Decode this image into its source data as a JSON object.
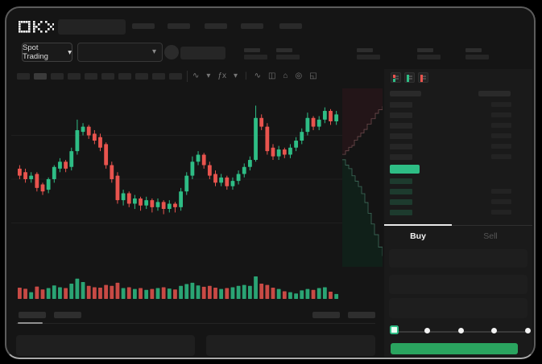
{
  "brand": {
    "logo_text": "OKX"
  },
  "nav": {
    "placeholder_items": 5,
    "placeholder_x": [
      156,
      200,
      246,
      291,
      339
    ]
  },
  "market_bar": {
    "pair_selector_label": "Spot Trading",
    "chevron": "▾",
    "stat_pair_x": [
      295,
      335,
      435,
      510,
      570
    ]
  },
  "toolbar": {
    "interval_buttons": 10,
    "active_interval_index": 1,
    "icons": [
      {
        "name": "chart-type-icon",
        "glyph": "∿"
      },
      {
        "name": "chart-type-chevron-icon",
        "glyph": "▾"
      },
      {
        "name": "indicators-icon",
        "glyph": "ƒx"
      },
      {
        "name": "indicators-chevron-icon",
        "glyph": "▾"
      },
      {
        "name": "divider",
        "glyph": "|"
      },
      {
        "name": "compare-icon",
        "glyph": "∿"
      },
      {
        "name": "layout-icon",
        "glyph": "◫"
      },
      {
        "name": "camera-icon",
        "glyph": "⌂"
      },
      {
        "name": "settings-icon",
        "glyph": "◎"
      },
      {
        "name": "fullscreen-icon",
        "glyph": "◱"
      }
    ]
  },
  "colors": {
    "up_green": "#2ebd85",
    "down_red": "#e8544e",
    "buy_button_green": "#2aa45f",
    "last_price_green": "#2ebd85",
    "panel_bg": "#1a1a1a",
    "device_bg": "#151515"
  },
  "chart_data": {
    "type": "candlestick",
    "title": "",
    "xlabel": "",
    "ylabel": "",
    "price_scale": [
      0,
      100
    ],
    "grid": "faint-horizontal",
    "candles_ochl": [
      [
        56,
        52,
        58,
        50
      ],
      [
        54,
        50,
        56,
        48
      ],
      [
        50,
        52,
        54,
        48
      ],
      [
        53,
        45,
        54,
        43
      ],
      [
        47,
        43,
        48,
        41
      ],
      [
        44,
        50,
        51,
        42
      ],
      [
        50,
        57,
        58,
        48
      ],
      [
        56,
        60,
        62,
        54
      ],
      [
        60,
        56,
        61,
        54
      ],
      [
        57,
        66,
        68,
        55
      ],
      [
        66,
        78,
        84,
        64
      ],
      [
        77,
        80,
        82,
        75
      ],
      [
        80,
        75,
        81,
        73
      ],
      [
        76,
        72,
        78,
        70
      ],
      [
        74,
        68,
        76,
        66
      ],
      [
        70,
        58,
        71,
        56
      ],
      [
        58,
        50,
        60,
        48
      ],
      [
        52,
        38,
        54,
        36
      ],
      [
        38,
        42,
        44,
        35
      ],
      [
        42,
        36,
        43,
        34
      ],
      [
        36,
        39,
        41,
        33
      ],
      [
        39,
        35,
        40,
        32
      ],
      [
        35,
        38,
        40,
        33
      ],
      [
        38,
        34,
        39,
        31
      ],
      [
        34,
        37,
        39,
        32
      ],
      [
        37,
        33,
        38,
        30
      ],
      [
        33,
        36,
        38,
        31
      ],
      [
        36,
        34,
        37,
        31
      ],
      [
        34,
        43,
        45,
        32
      ],
      [
        43,
        52,
        54,
        41
      ],
      [
        52,
        60,
        63,
        50
      ],
      [
        60,
        64,
        66,
        58
      ],
      [
        64,
        58,
        65,
        56
      ],
      [
        58,
        52,
        60,
        50
      ],
      [
        53,
        48,
        55,
        46
      ],
      [
        48,
        51,
        53,
        46
      ],
      [
        51,
        46,
        52,
        44
      ],
      [
        46,
        49,
        51,
        44
      ],
      [
        49,
        53,
        55,
        47
      ],
      [
        53,
        57,
        59,
        51
      ],
      [
        57,
        61,
        63,
        55
      ],
      [
        61,
        85,
        92,
        60
      ],
      [
        85,
        80,
        87,
        78
      ],
      [
        80,
        66,
        82,
        64
      ],
      [
        68,
        63,
        70,
        61
      ],
      [
        63,
        67,
        69,
        61
      ],
      [
        67,
        64,
        68,
        62
      ],
      [
        64,
        68,
        70,
        62
      ],
      [
        68,
        72,
        74,
        66
      ],
      [
        72,
        77,
        79,
        70
      ],
      [
        77,
        85,
        88,
        75
      ],
      [
        85,
        80,
        86,
        78
      ],
      [
        80,
        84,
        86,
        78
      ],
      [
        84,
        89,
        91,
        82
      ],
      [
        89,
        83,
        90,
        81
      ],
      [
        83,
        87,
        89,
        81
      ]
    ],
    "volumes": [
      0.5,
      0.45,
      0.3,
      0.55,
      0.42,
      0.48,
      0.6,
      0.52,
      0.48,
      0.68,
      0.9,
      0.75,
      0.58,
      0.52,
      0.5,
      0.62,
      0.58,
      0.72,
      0.48,
      0.52,
      0.44,
      0.48,
      0.4,
      0.44,
      0.48,
      0.52,
      0.46,
      0.42,
      0.58,
      0.66,
      0.72,
      0.6,
      0.54,
      0.58,
      0.5,
      0.44,
      0.48,
      0.52,
      0.58,
      0.62,
      0.58,
      1.0,
      0.68,
      0.62,
      0.5,
      0.44,
      0.34,
      0.3,
      0.24,
      0.38,
      0.44,
      0.4,
      0.48,
      0.52,
      0.32,
      0.22
    ],
    "depth": {
      "asks": [
        [
          0,
          0.37
        ],
        [
          0.08,
          0.35
        ],
        [
          0.16,
          0.33
        ],
        [
          0.24,
          0.32
        ],
        [
          0.3,
          0.29
        ],
        [
          0.38,
          0.27
        ],
        [
          0.46,
          0.25
        ],
        [
          0.54,
          0.23
        ],
        [
          0.62,
          0.2
        ],
        [
          0.72,
          0.17
        ],
        [
          0.82,
          0.14
        ],
        [
          0.9,
          0.12
        ],
        [
          1,
          0.1
        ]
      ],
      "bids": [
        [
          0,
          0.4
        ],
        [
          0.08,
          0.43
        ],
        [
          0.16,
          0.45
        ],
        [
          0.24,
          0.49
        ],
        [
          0.32,
          0.52
        ],
        [
          0.4,
          0.55
        ],
        [
          0.48,
          0.59
        ],
        [
          0.56,
          0.64
        ],
        [
          0.64,
          0.7
        ],
        [
          0.72,
          0.76
        ],
        [
          0.8,
          0.82
        ],
        [
          0.9,
          0.89
        ],
        [
          1,
          0.94
        ]
      ]
    }
  },
  "order_book": {
    "mode_icons": [
      "book-mode-both",
      "book-mode-bids",
      "book-mode-asks"
    ],
    "ask_rows": 6,
    "bid_rows": 4,
    "bid_right_bars": [
      false,
      true,
      true,
      true
    ]
  },
  "trade_panel": {
    "buy_tab_label": "Buy",
    "sell_tab_label": "Sell",
    "active_tab": "Buy",
    "input_fields": 3,
    "slider": {
      "stops": 5,
      "active_stop_index": 0
    },
    "submit_button_text": ""
  },
  "bottom_section": {
    "tab_placeholders": 2,
    "active_tab_index": 0,
    "right_button_placeholders": 2,
    "panel_placeholders": 2
  }
}
